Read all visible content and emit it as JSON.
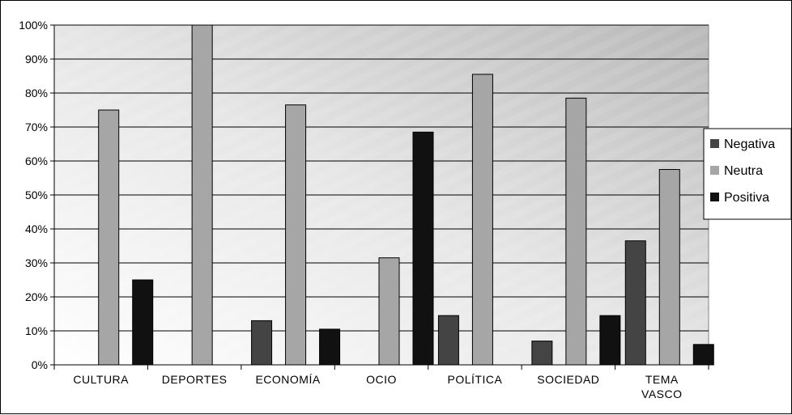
{
  "chart_data": {
    "type": "bar",
    "categories": [
      [
        "CULTURA"
      ],
      [
        "DEPORTES"
      ],
      [
        "ECONOMÍA"
      ],
      [
        "OCIO"
      ],
      [
        "POLÍTICA"
      ],
      [
        "SOCIEDAD"
      ],
      [
        "TEMA",
        "VASCO"
      ]
    ],
    "series": [
      {
        "name": "Negativa",
        "color": "#444444",
        "values": [
          0,
          0,
          13,
          0,
          14.5,
          7,
          36.5
        ]
      },
      {
        "name": "Neutra",
        "color": "#a6a6a6",
        "values": [
          75,
          100,
          76.5,
          31.5,
          85.5,
          78.5,
          57.5
        ]
      },
      {
        "name": "Positiva",
        "color": "#111111",
        "values": [
          25,
          0,
          10.5,
          68.5,
          0,
          14.5,
          6
        ]
      }
    ],
    "ylim": [
      0,
      100
    ],
    "yticks": [
      "0%",
      "10%",
      "20%",
      "30%",
      "40%",
      "50%",
      "60%",
      "70%",
      "80%",
      "90%",
      "100%"
    ],
    "grid": true,
    "legend_position": "right"
  }
}
